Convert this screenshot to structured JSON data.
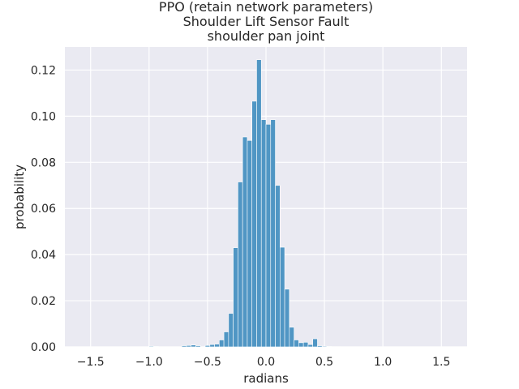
{
  "chart_data": {
    "type": "bar",
    "title_lines": [
      "PPO (retain network parameters)",
      "Shoulder Lift Sensor Fault",
      "shoulder pan joint"
    ],
    "xlabel": "radians",
    "ylabel": "probability",
    "xlim": [
      -1.72,
      1.72
    ],
    "ylim": [
      0,
      0.13
    ],
    "xticks": [
      -1.5,
      -1.0,
      -0.5,
      0.0,
      0.5,
      1.0,
      1.5
    ],
    "xtick_labels": [
      "−1.5",
      "−1.0",
      "−0.5",
      "0.0",
      "0.5",
      "1.0",
      "1.5"
    ],
    "yticks": [
      0.0,
      0.02,
      0.04,
      0.06,
      0.08,
      0.1,
      0.12
    ],
    "ytick_labels": [
      "0.00",
      "0.02",
      "0.04",
      "0.06",
      "0.08",
      "0.10",
      "0.12"
    ],
    "grid": true,
    "bar_color": "#5096c4",
    "background_color": "#eaeaf2",
    "bin_width": 0.04,
    "bin_left_edges": [
      -1.0,
      -0.96,
      -0.72,
      -0.68,
      -0.64,
      -0.6,
      -0.52,
      -0.48,
      -0.44,
      -0.4,
      -0.36,
      -0.32,
      -0.28,
      -0.24,
      -0.2,
      -0.16,
      -0.12,
      -0.08,
      -0.04,
      0.0,
      0.04,
      0.08,
      0.12,
      0.16,
      0.2,
      0.24,
      0.28,
      0.32,
      0.36,
      0.4,
      0.44,
      0.48,
      0.52,
      0.56,
      0.6
    ],
    "values": [
      0.0003,
      0.0002,
      0.0005,
      0.0006,
      0.0008,
      0.0005,
      0.0006,
      0.001,
      0.0012,
      0.003,
      0.0065,
      0.0145,
      0.043,
      0.0715,
      0.091,
      0.0895,
      0.1065,
      0.1245,
      0.0985,
      0.0965,
      0.0985,
      0.07,
      0.0432,
      0.025,
      0.0085,
      0.003,
      0.0018,
      0.002,
      0.001,
      0.0035,
      0.0005,
      0.0003,
      0.0002,
      0.0001,
      0.0001
    ]
  }
}
